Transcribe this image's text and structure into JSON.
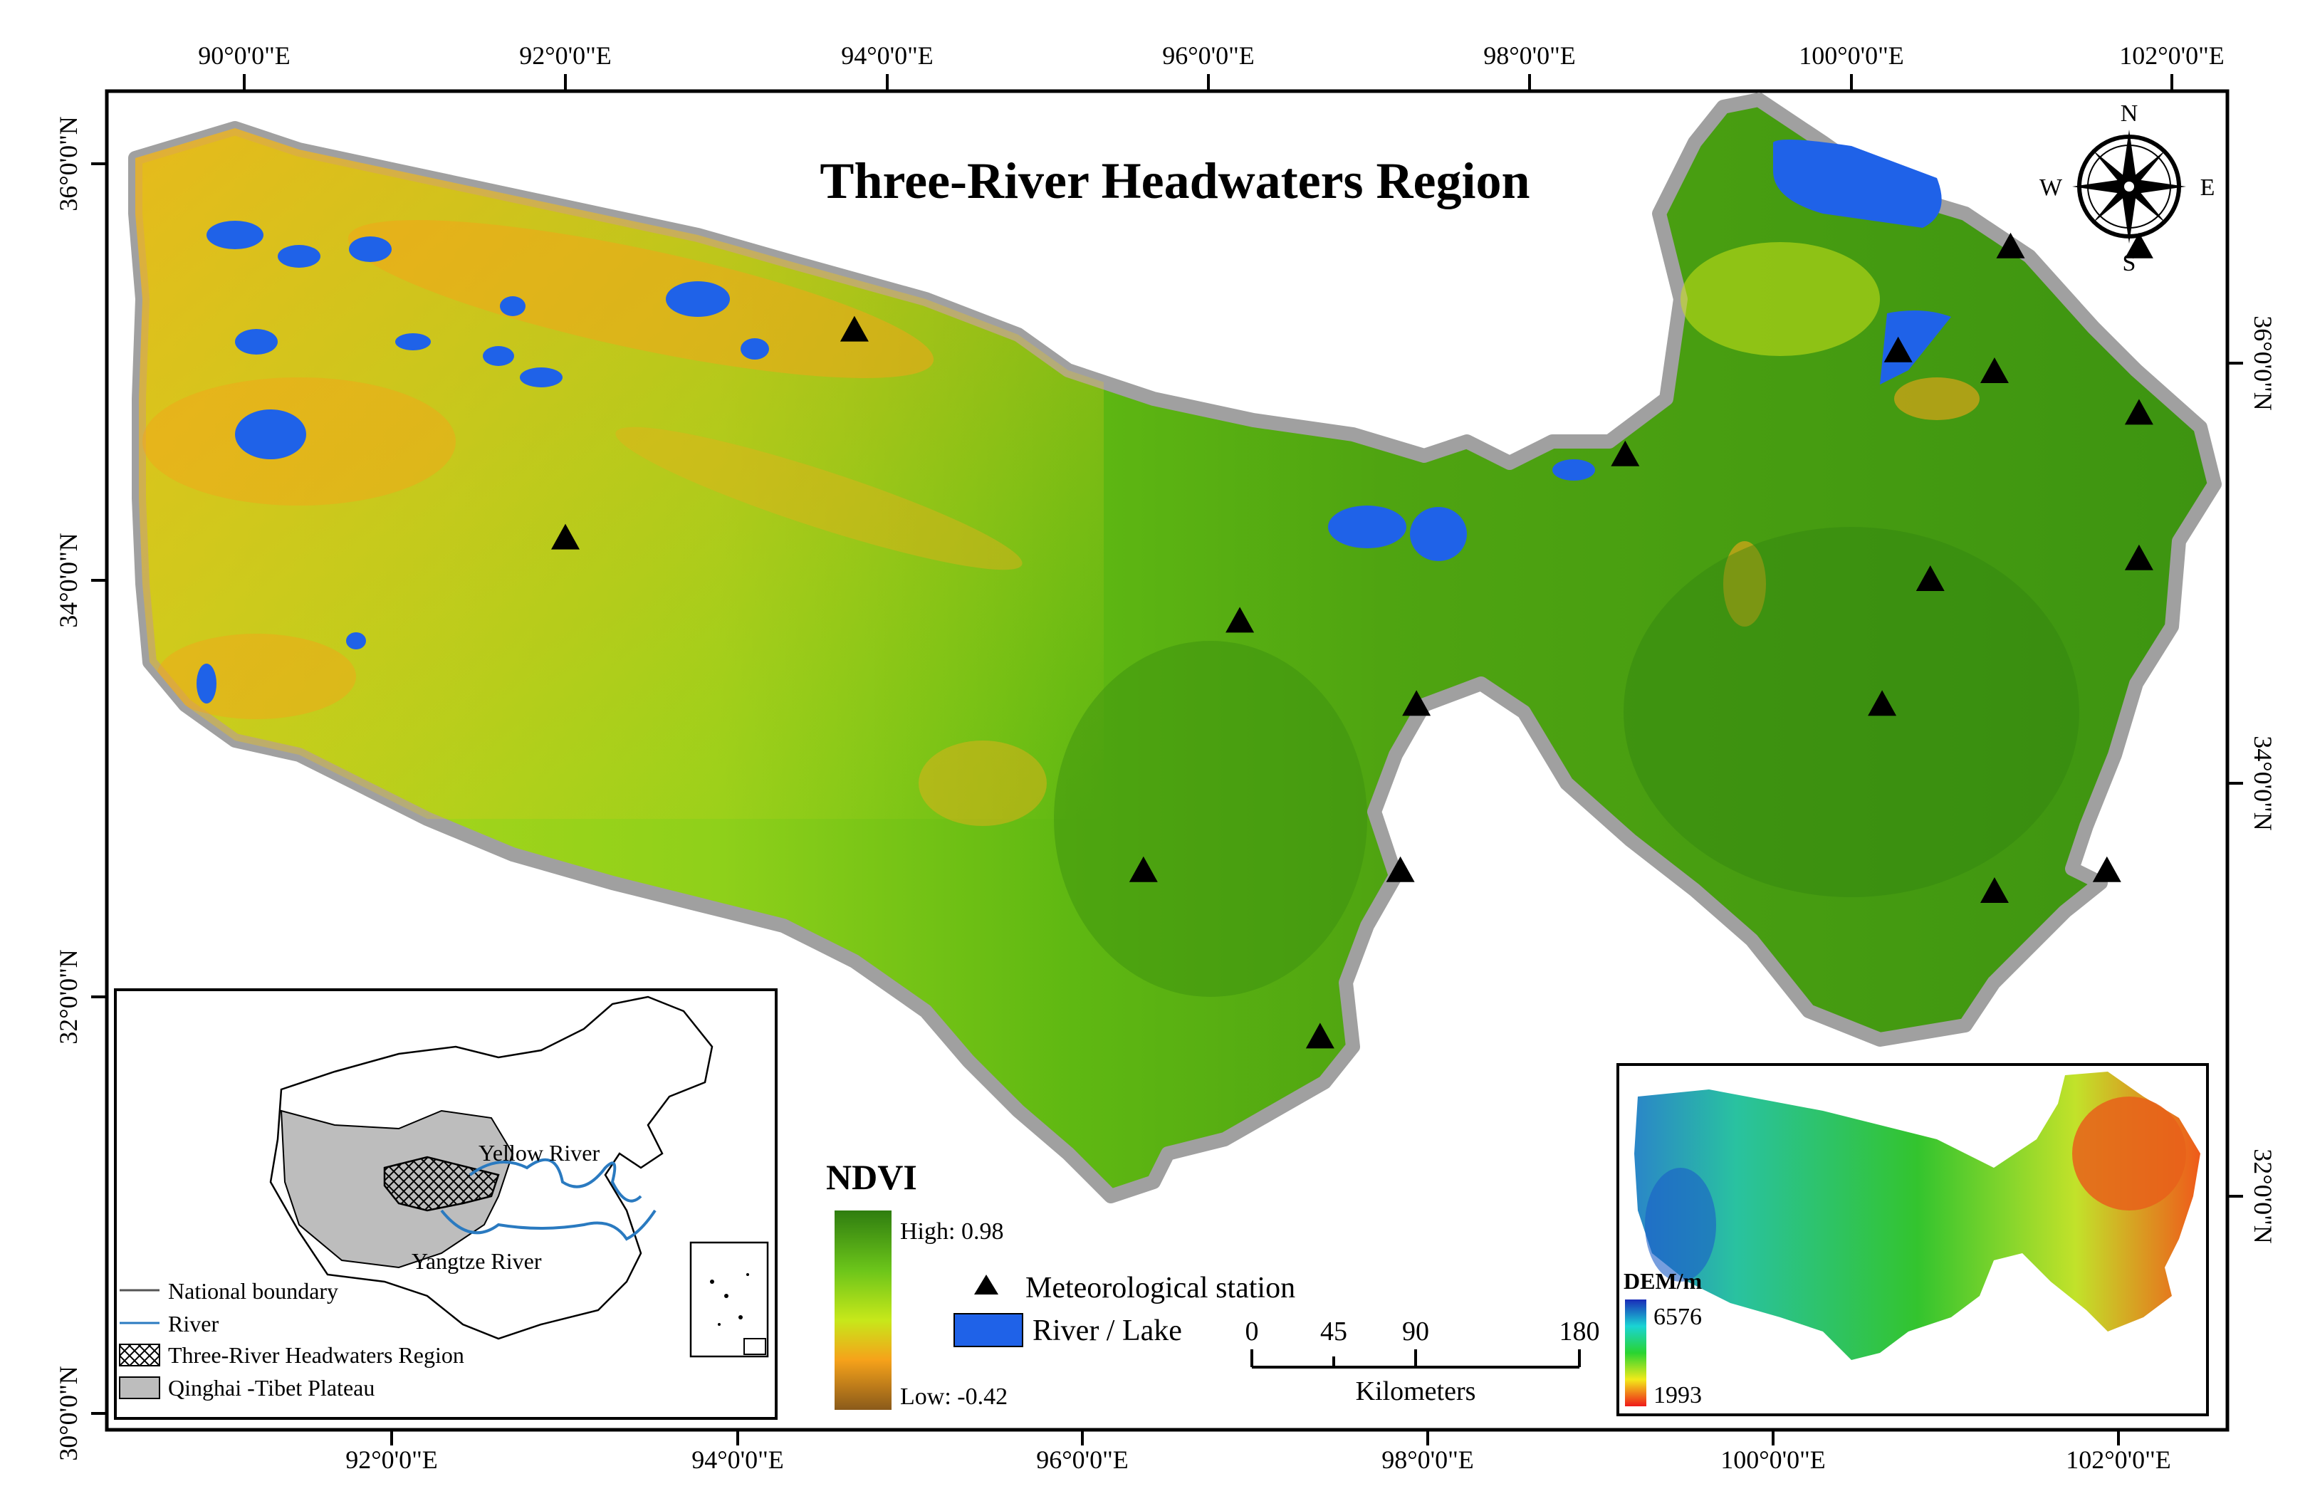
{
  "title": "Three-River Headwaters Region",
  "axes": {
    "top": [
      "90°0'0\"E",
      "92°0'0\"E",
      "94°0'0\"E",
      "96°0'0\"E",
      "98°0'0\"E",
      "100°0'0\"E",
      "102°0'0\"E"
    ],
    "bottom": [
      "92°0'0\"E",
      "94°0'0\"E",
      "96°0'0\"E",
      "98°0'0\"E",
      "100°0'0\"E",
      "102°0'0\"E"
    ],
    "left": [
      "36°0'0\"N",
      "34°0'0\"N",
      "32°0'0\"N",
      "30°0'0\"N"
    ],
    "right": [
      "36°0'0\"N",
      "34°0'0\"N",
      "32°0'0\"N"
    ]
  },
  "compass": {
    "n": "N",
    "s": "S",
    "e": "E",
    "w": "W"
  },
  "ndvi_legend": {
    "title": "NDVI",
    "high": "High: 0.98",
    "low": "Low: -0.42",
    "colors": [
      "#2f7d10",
      "#7fd11a",
      "#c7e81a",
      "#f6a21a",
      "#8a5a1a"
    ]
  },
  "symbols": {
    "station": "Meteorological station",
    "water": "River / Lake",
    "water_color": "#1f62e8"
  },
  "scale_bar": {
    "ticks": [
      "0",
      "45",
      "90",
      "180"
    ],
    "unit": "Kilometers"
  },
  "inset_china": {
    "yellow_river": "Yellow River",
    "yangtze_river": "Yangtze River",
    "legend": [
      "National boundary",
      "River",
      "Three-River Headwaters Region",
      "Qinghai -Tibet Plateau"
    ],
    "plateau_color": "#bdbdbd",
    "river_color": "#2a7ac0"
  },
  "inset_dem": {
    "title": "DEM/m",
    "max": "6576",
    "min": "1993"
  },
  "stations": [
    {
      "lon": 93.8,
      "lat": 35.2
    },
    {
      "lon": 92.0,
      "lat": 34.2
    },
    {
      "lon": 96.2,
      "lat": 33.8
    },
    {
      "lon": 97.3,
      "lat": 33.4
    },
    {
      "lon": 95.6,
      "lat": 32.6
    },
    {
      "lon": 97.2,
      "lat": 32.6
    },
    {
      "lon": 96.7,
      "lat": 31.8
    },
    {
      "lon": 98.6,
      "lat": 34.6
    },
    {
      "lon": 100.3,
      "lat": 35.1
    },
    {
      "lon": 101.0,
      "lat": 35.6
    },
    {
      "lon": 100.9,
      "lat": 35.0
    },
    {
      "lon": 101.8,
      "lat": 35.6
    },
    {
      "lon": 101.8,
      "lat": 34.8
    },
    {
      "lon": 101.8,
      "lat": 34.1
    },
    {
      "lon": 100.5,
      "lat": 34.0
    },
    {
      "lon": 100.2,
      "lat": 33.4
    },
    {
      "lon": 101.6,
      "lat": 32.6
    },
    {
      "lon": 100.9,
      "lat": 32.5
    }
  ]
}
